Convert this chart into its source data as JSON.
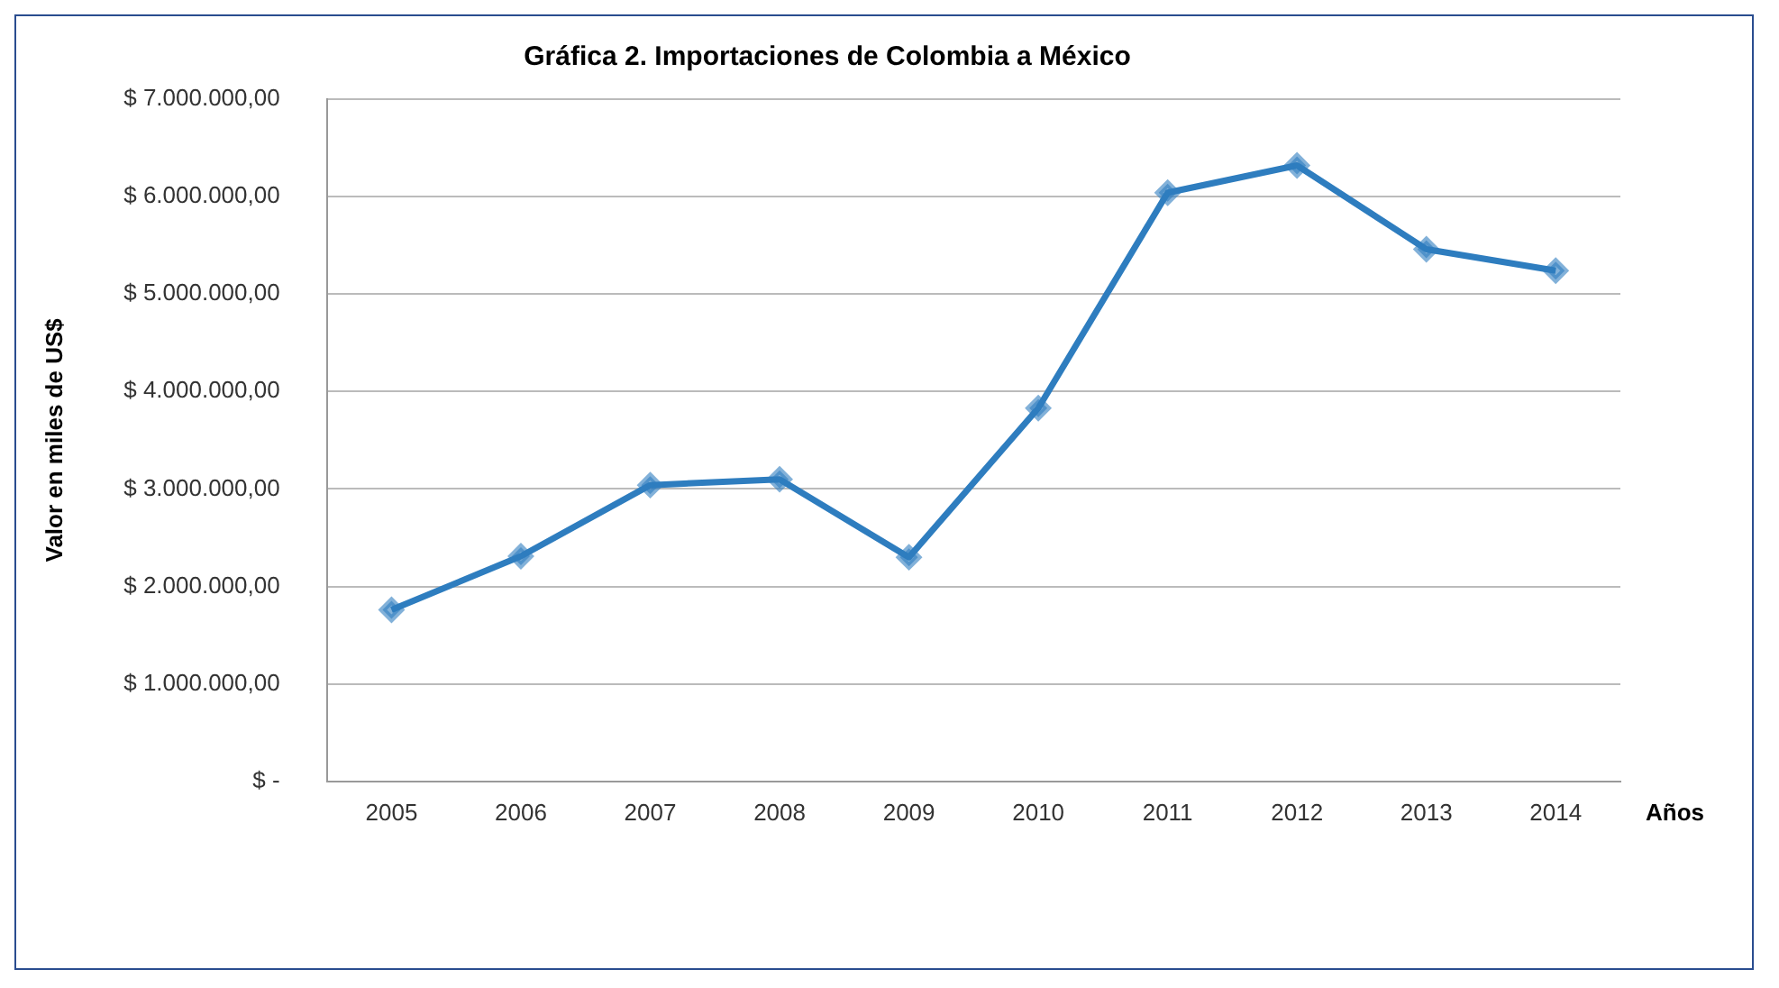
{
  "chart_data": {
    "type": "line",
    "title": "Gráfica 2. Importaciones de Colombia a México",
    "xlabel": "Años",
    "ylabel": "Valor en miles de US$",
    "categories": [
      "2005",
      "2006",
      "2007",
      "2008",
      "2009",
      "2010",
      "2011",
      "2012",
      "2013",
      "2014"
    ],
    "series": [
      {
        "color": "#2e7dbf",
        "values": [
          1760000,
          2310000,
          3040000,
          3100000,
          2300000,
          3830000,
          6040000,
          6320000,
          5460000,
          5240000
        ]
      }
    ],
    "ylim": [
      0,
      7000000
    ],
    "yticks": [
      {
        "value": 0,
        "label": "$ -"
      },
      {
        "value": 1000000,
        "label": "$ 1.000.000,00"
      },
      {
        "value": 2000000,
        "label": "$ 2.000.000,00"
      },
      {
        "value": 3000000,
        "label": "$ 3.000.000,00"
      },
      {
        "value": 4000000,
        "label": "$ 4.000.000,00"
      },
      {
        "value": 5000000,
        "label": "$ 5.000.000,00"
      },
      {
        "value": 6000000,
        "label": "$ 6.000.000,00"
      },
      {
        "value": 7000000,
        "label": "$ 7.000.000,00"
      }
    ],
    "grid": "y",
    "legend": false,
    "marker": "diamond",
    "line_style": "solid"
  }
}
